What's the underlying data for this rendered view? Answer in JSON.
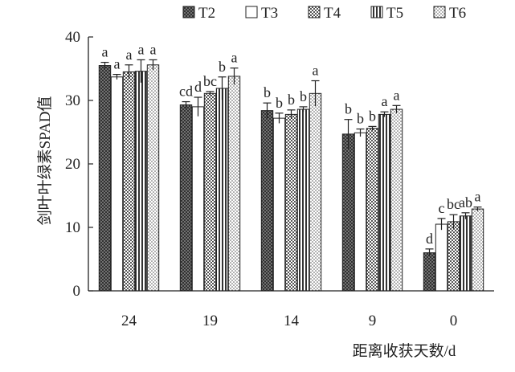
{
  "chart_data": {
    "type": "bar",
    "xlabel": "距离收获天数/d",
    "ylabel": "剑叶叶绿素SPAD值",
    "ylim": [
      0,
      40
    ],
    "yticks": [
      0,
      10,
      20,
      30,
      40
    ],
    "categories": [
      "24",
      "19",
      "14",
      "9",
      "0"
    ],
    "legend_position": "top",
    "series": [
      {
        "name": "T2",
        "pattern": "dense-crosshatch",
        "color": "#555555",
        "values": [
          35.5,
          29.3,
          28.4,
          24.7,
          6.0
        ],
        "errors": [
          0.5,
          0.5,
          1.2,
          2.3,
          0.6
        ],
        "labels": [
          "a",
          "cd",
          "b",
          "b",
          "d"
        ]
      },
      {
        "name": "T3",
        "pattern": "white",
        "color": "#ffffff",
        "values": [
          33.7,
          29.0,
          27.2,
          24.9,
          10.5
        ],
        "errors": [
          0.4,
          1.5,
          0.8,
          0.6,
          0.9
        ],
        "labels": [
          "a",
          "d",
          "b",
          "b",
          "c"
        ]
      },
      {
        "name": "T4",
        "pattern": "checker",
        "color": "#888888",
        "values": [
          34.5,
          31.1,
          27.8,
          25.6,
          10.9
        ],
        "errors": [
          1.1,
          0.3,
          0.7,
          0.3,
          1.1
        ],
        "labels": [
          "a",
          "bc",
          "b",
          "b",
          "bc"
        ]
      },
      {
        "name": "T5",
        "pattern": "vertical-lines",
        "color": "#333333",
        "values": [
          34.6,
          31.9,
          28.6,
          27.8,
          11.8
        ],
        "errors": [
          1.8,
          1.8,
          0.4,
          0.4,
          0.5
        ],
        "labels": [
          "a",
          "b",
          "b",
          "a",
          "ab"
        ]
      },
      {
        "name": "T6",
        "pattern": "fine-dots",
        "color": "#aaaaaa",
        "values": [
          35.6,
          33.8,
          31.1,
          28.6,
          12.9
        ],
        "errors": [
          0.8,
          1.3,
          2.0,
          0.6,
          0.3
        ],
        "labels": [
          "a",
          "a",
          "a",
          "a",
          "a"
        ]
      }
    ]
  }
}
